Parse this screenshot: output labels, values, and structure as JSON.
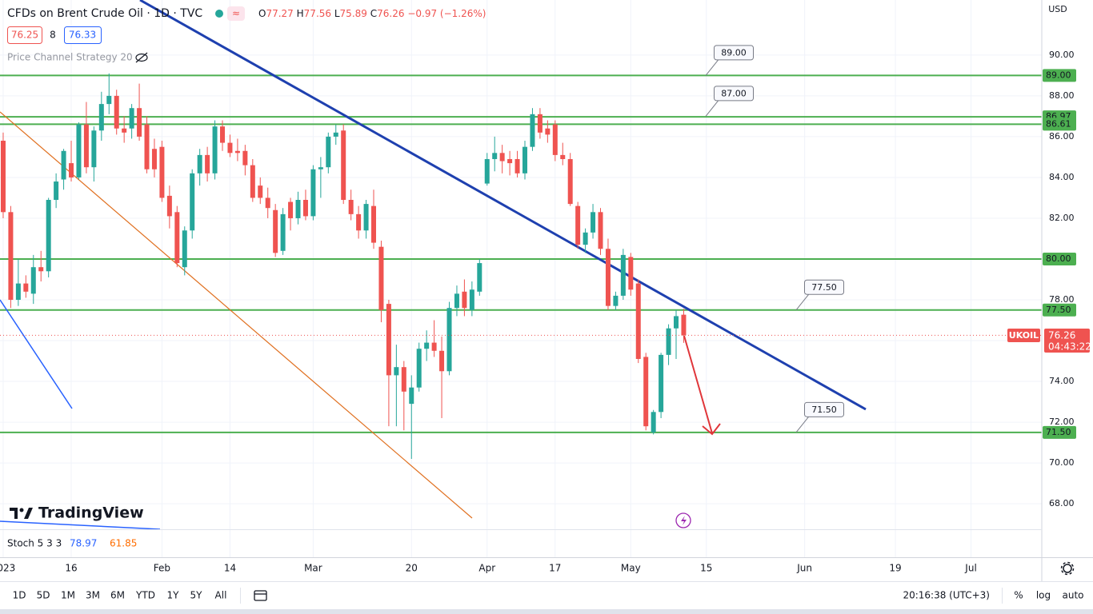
{
  "chart_data": {
    "type": "candlestick",
    "xlim": [
      -0.42,
      137.36
    ],
    "ylim": [
      66.75,
      92.7
    ],
    "xticks": [
      {
        "value": 0,
        "label": "2023"
      },
      {
        "value": 9,
        "label": "16"
      },
      {
        "value": 21,
        "label": "Feb"
      },
      {
        "value": 30,
        "label": "14"
      },
      {
        "value": 41,
        "label": "Mar"
      },
      {
        "value": 54,
        "label": "20"
      },
      {
        "value": 64,
        "label": "Apr"
      },
      {
        "value": 73,
        "label": "17"
      },
      {
        "value": 83,
        "label": "May"
      },
      {
        "value": 93,
        "label": "15"
      },
      {
        "value": 106,
        "label": "Jun"
      },
      {
        "value": 118,
        "label": "19"
      },
      {
        "value": 128,
        "label": "Jul"
      }
    ],
    "yticks": [
      {
        "value": 68,
        "label": "68.00"
      },
      {
        "value": 70,
        "label": "70.00"
      },
      {
        "value": 72,
        "label": "72.00"
      },
      {
        "value": 74,
        "label": "74.00"
      },
      {
        "value": 76,
        "label": "76.00"
      },
      {
        "value": 78,
        "label": "78.00"
      },
      {
        "value": 80,
        "label": "80.00"
      },
      {
        "value": 82,
        "label": "82.00"
      },
      {
        "value": 84,
        "label": "84.00"
      },
      {
        "value": 86,
        "label": "86.00"
      },
      {
        "value": 88,
        "label": "88.00"
      },
      {
        "value": 90,
        "label": "90.00"
      }
    ],
    "grid": true,
    "up_color": "#26a69a",
    "down_color": "#ef5350",
    "level_color": "#4caf50",
    "open": [
      85.8,
      82.3,
      78.0,
      78.8,
      78.3,
      79.6,
      79.4,
      82.9,
      83.9,
      84.7,
      84.0,
      86.6,
      84.5,
      86.3,
      87.6,
      88.0,
      86.4,
      86.4,
      87.4,
      86.6,
      85.4,
      85.5,
      83.1,
      82.3,
      79.6,
      81.4,
      84.2,
      85.1,
      84.2,
      86.5,
      85.7,
      85.3,
      85.3,
      84.6,
      83.6,
      83.0,
      82.4,
      80.4,
      82.8,
      82.0,
      82.9,
      82.1,
      84.4,
      84.5,
      86.0,
      86.3,
      82.9,
      82.2,
      81.4,
      82.6,
      80.6,
      77.8,
      74.3,
      74.7,
      72.9,
      73.7,
      75.6,
      75.9,
      75.5,
      74.5,
      77.6,
      78.4,
      77.5,
      78.4,
      83.7,
      84.9,
      85.2,
      84.9,
      84.9,
      84.2,
      85.5,
      87.1,
      86.4,
      86.6,
      85.1,
      84.9,
      82.6,
      80.7,
      81.3,
      82.3,
      80.5,
      77.7,
      78.2,
      80.1,
      78.8,
      75.2,
      71.5,
      72.5,
      75.3,
      76.6,
      77.27
    ],
    "high": [
      86.2,
      82.6,
      80.0,
      79.2,
      80.2,
      80.4,
      83.0,
      84.2,
      85.4,
      85.8,
      86.7,
      87.7,
      86.5,
      88.2,
      89.1,
      88.3,
      87.0,
      87.6,
      88.6,
      87.0,
      85.9,
      85.8,
      83.6,
      82.6,
      81.6,
      84.4,
      85.4,
      85.5,
      86.8,
      86.8,
      86.1,
      85.9,
      85.6,
      84.9,
      84.0,
      83.5,
      82.7,
      82.5,
      83.0,
      83.3,
      83.4,
      84.6,
      85.0,
      86.2,
      86.6,
      86.6,
      83.4,
      82.6,
      82.9,
      83.4,
      80.9,
      78.0,
      75.8,
      75.0,
      74.3,
      75.9,
      76.5,
      77.0,
      76.2,
      77.9,
      78.7,
      79.0,
      78.9,
      80.0,
      85.2,
      86.0,
      85.6,
      85.3,
      85.3,
      85.8,
      87.4,
      87.4,
      86.8,
      86.8,
      85.7,
      85.2,
      82.8,
      81.5,
      82.7,
      82.5,
      81.0,
      78.4,
      80.5,
      80.3,
      79.0,
      75.4,
      72.6,
      75.4,
      76.8,
      77.5,
      77.56
    ],
    "low": [
      82.0,
      77.6,
      77.7,
      78.1,
      77.8,
      78.9,
      79.1,
      82.5,
      83.4,
      83.8,
      83.9,
      84.2,
      83.8,
      85.8,
      87.1,
      86.1,
      85.7,
      85.9,
      85.8,
      84.2,
      84.0,
      82.8,
      81.5,
      79.6,
      79.2,
      81.0,
      83.6,
      83.8,
      83.9,
      85.3,
      85.0,
      84.8,
      84.1,
      82.8,
      82.7,
      82.0,
      80.1,
      80.2,
      81.4,
      81.7,
      81.9,
      81.9,
      83.0,
      84.2,
      85.6,
      82.7,
      81.9,
      81.0,
      81.0,
      80.5,
      76.9,
      71.8,
      71.8,
      71.6,
      70.2,
      73.5,
      75.0,
      75.2,
      72.2,
      74.3,
      77.2,
      77.2,
      77.2,
      78.2,
      83.6,
      84.3,
      84.2,
      84.1,
      84.0,
      83.9,
      85.3,
      85.9,
      85.7,
      84.8,
      84.6,
      82.6,
      80.5,
      80.3,
      81.0,
      80.2,
      77.5,
      77.5,
      78.0,
      78.2,
      74.9,
      71.6,
      71.4,
      72.2,
      74.8,
      75.1,
      75.89
    ],
    "close": [
      82.3,
      78.0,
      78.8,
      78.4,
      79.6,
      79.4,
      82.9,
      83.8,
      85.3,
      84.0,
      86.6,
      84.5,
      86.3,
      87.6,
      88.0,
      86.4,
      86.2,
      87.4,
      86.0,
      84.4,
      84.4,
      83.0,
      82.1,
      79.8,
      81.4,
      84.2,
      85.1,
      84.2,
      86.5,
      85.7,
      85.2,
      85.2,
      84.6,
      83.0,
      83.0,
      82.5,
      80.3,
      82.2,
      82.0,
      82.9,
      82.1,
      84.4,
      84.5,
      86.0,
      86.2,
      82.9,
      82.2,
      81.4,
      82.7,
      80.8,
      77.5,
      74.3,
      74.7,
      73.5,
      73.7,
      75.6,
      75.9,
      75.5,
      74.5,
      77.6,
      78.3,
      77.6,
      78.5,
      79.8,
      84.9,
      85.2,
      84.8,
      84.7,
      84.2,
      85.5,
      87.1,
      86.2,
      86.1,
      85.1,
      84.9,
      82.7,
      80.7,
      81.3,
      82.3,
      80.5,
      77.7,
      78.2,
      80.2,
      78.5,
      75.1,
      71.8,
      72.5,
      75.3,
      76.6,
      77.2,
      76.26
    ],
    "levels": [
      {
        "value": 89,
        "label": "89.00"
      },
      {
        "value": 86.97,
        "label": "86.97"
      },
      {
        "value": 86.61,
        "label": "86.61"
      },
      {
        "value": 80,
        "label": "80.00"
      },
      {
        "value": 77.5,
        "label": "77.50"
      },
      {
        "value": 71.5,
        "label": "71.50"
      }
    ],
    "callouts": [
      {
        "value": 89,
        "label": "89.00"
      },
      {
        "value": 87,
        "label": "87.00"
      },
      {
        "value": 77.5,
        "label": "77.50"
      },
      {
        "value": 71.5,
        "label": "71.50"
      }
    ]
  },
  "ui": {
    "symbol": "CFDs on Brent Crude Oil · 1D · TVC",
    "ohlc": [
      {
        "key": "O",
        "value": "77.27"
      },
      {
        "key": "H",
        "value": "77.56"
      },
      {
        "key": "L",
        "value": "75.89"
      },
      {
        "key": "C",
        "value": "76.26"
      }
    ],
    "change": "−0.97 (−1.26%)",
    "bid": "76.25",
    "spread": "8",
    "ask": "76.33",
    "indicator": "Price Channel Strategy 20",
    "stoch": {
      "name": "Stoch 5 3 3",
      "k": "78.97",
      "d": "61.85"
    },
    "currency": "USD",
    "tag": {
      "ticker": "UKOIL",
      "price": "76.26",
      "countdown": "04:43:22"
    },
    "logo": "TradingView",
    "ranges": [
      "1D",
      "5D",
      "1M",
      "3M",
      "6M",
      "YTD",
      "1Y",
      "5Y",
      "All"
    ],
    "clock": "20:16:38 (UTC+3)",
    "scale_buttons": [
      "%",
      "log",
      "auto"
    ]
  }
}
